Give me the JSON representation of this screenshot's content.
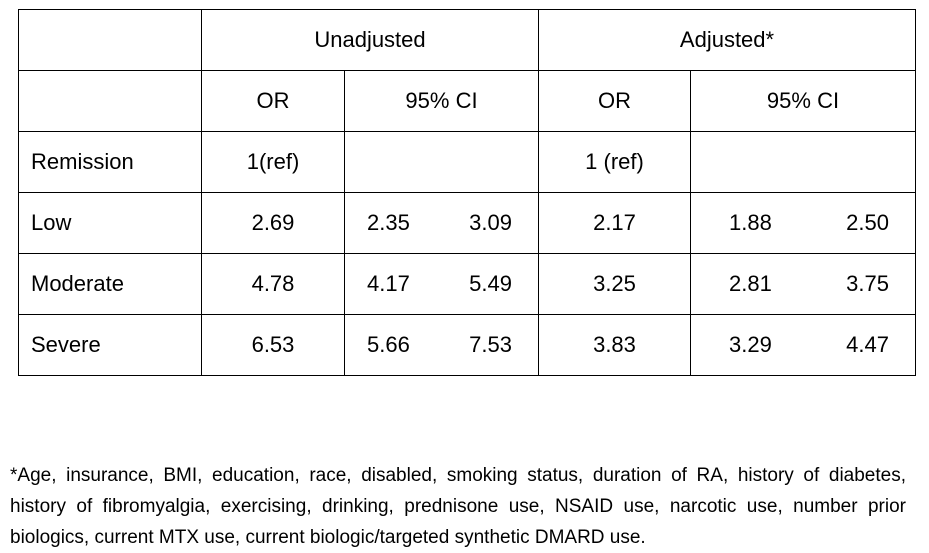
{
  "table": {
    "group_headers": {
      "unadjusted": "Unadjusted",
      "adjusted": "Adjusted*"
    },
    "sub_headers": {
      "unadj_or": "OR",
      "unadj_ci": "95% CI",
      "adj_or": "OR",
      "adj_ci": "95% CI"
    },
    "rows": [
      {
        "label": "Remission",
        "unadj_or": "1(ref)",
        "unadj_ci_low": "",
        "unadj_ci_high": "",
        "adj_or": "1 (ref)",
        "adj_ci_low": "",
        "adj_ci_high": ""
      },
      {
        "label": "Low",
        "unadj_or": "2.69",
        "unadj_ci_low": "2.35",
        "unadj_ci_high": "3.09",
        "adj_or": "2.17",
        "adj_ci_low": "1.88",
        "adj_ci_high": "2.50"
      },
      {
        "label": "Moderate",
        "unadj_or": "4.78",
        "unadj_ci_low": "4.17",
        "unadj_ci_high": "5.49",
        "adj_or": "3.25",
        "adj_ci_low": "2.81",
        "adj_ci_high": "3.75"
      },
      {
        "label": "Severe",
        "unadj_or": "6.53",
        "unadj_ci_low": "5.66",
        "unadj_ci_high": "7.53",
        "adj_or": "3.83",
        "adj_ci_low": "3.29",
        "adj_ci_high": "4.47"
      }
    ]
  },
  "footnote": "*Age, insurance, BMI, education, race, disabled, smoking status, duration of RA, history of diabetes, history of fibromyalgia, exercising, drinking, prednisone use, NSAID use, narcotic use, number prior biologics, current MTX use, current biologic/targeted synthetic DMARD use."
}
